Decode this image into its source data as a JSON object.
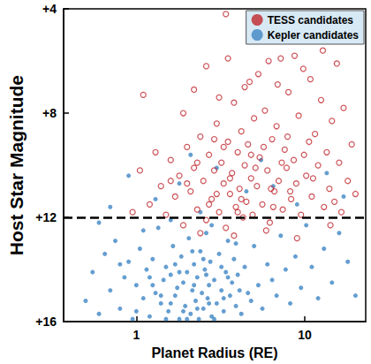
{
  "chart_data": {
    "type": "scatter",
    "x_label": "Planet Radius (RE)",
    "y_label": "Host Star Magnitude",
    "log": "x",
    "xlim": [
      0.37,
      23
    ],
    "xticks": [
      1,
      10
    ],
    "ylim": [
      4,
      16
    ],
    "yticks": [
      {
        "value": 4,
        "label": "+4"
      },
      {
        "value": 8,
        "label": "+8"
      },
      {
        "value": 12,
        "label": "+12"
      },
      {
        "value": 16,
        "label": "+16"
      }
    ],
    "y_inverted": true,
    "grid": false,
    "legend": "upper right",
    "reference_line": {
      "y": 12,
      "line_style": "dashed",
      "color": "#000000"
    },
    "series": [
      {
        "name": "Kepler candidates",
        "color": "#3f86c4",
        "marker": "circle",
        "values": [
          [
            0.5,
            15.2
          ],
          [
            0.55,
            14.1
          ],
          [
            0.6,
            15.7
          ],
          [
            0.65,
            13.4
          ],
          [
            0.7,
            14.8
          ],
          [
            0.75,
            12.9
          ],
          [
            0.8,
            15.5
          ],
          [
            0.85,
            14.3
          ],
          [
            0.9,
            13.7
          ],
          [
            0.95,
            15.9
          ],
          [
            1.0,
            14.6
          ],
          [
            1.05,
            13.2
          ],
          [
            1.1,
            15.1
          ],
          [
            1.15,
            14.0
          ],
          [
            1.2,
            15.8
          ],
          [
            1.25,
            13.6
          ],
          [
            1.3,
            14.9
          ],
          [
            1.35,
            12.4
          ],
          [
            1.4,
            15.3
          ],
          [
            1.45,
            14.4
          ],
          [
            1.5,
            13.9
          ],
          [
            1.55,
            15.6
          ],
          [
            1.6,
            14.2
          ],
          [
            1.65,
            13.1
          ],
          [
            1.7,
            15.0
          ],
          [
            1.75,
            14.7
          ],
          [
            1.8,
            15.9
          ],
          [
            1.85,
            13.5
          ],
          [
            1.9,
            14.5
          ],
          [
            1.95,
            15.4
          ],
          [
            2.0,
            14.1
          ],
          [
            2.05,
            12.8
          ],
          [
            2.1,
            15.7
          ],
          [
            2.15,
            14.8
          ],
          [
            2.2,
            13.8
          ],
          [
            2.25,
            15.2
          ],
          [
            2.3,
            14.3
          ],
          [
            2.35,
            15.9
          ],
          [
            2.4,
            13.3
          ],
          [
            2.45,
            14.9
          ],
          [
            2.5,
            15.5
          ],
          [
            2.55,
            14.0
          ],
          [
            2.6,
            12.6
          ],
          [
            2.65,
            15.1
          ],
          [
            2.7,
            14.6
          ],
          [
            2.75,
            13.7
          ],
          [
            2.8,
            15.8
          ],
          [
            2.9,
            14.4
          ],
          [
            3.0,
            15.3
          ],
          [
            3.1,
            13.4
          ],
          [
            3.2,
            14.8
          ],
          [
            3.3,
            15.6
          ],
          [
            3.4,
            14.1
          ],
          [
            3.5,
            12.9
          ],
          [
            3.6,
            15.0
          ],
          [
            3.7,
            14.5
          ],
          [
            3.8,
            13.6
          ],
          [
            3.9,
            15.4
          ],
          [
            4.0,
            14.2
          ],
          [
            4.2,
            15.7
          ],
          [
            4.4,
            13.9
          ],
          [
            4.6,
            14.9
          ],
          [
            4.8,
            15.2
          ],
          [
            5.0,
            13.1
          ],
          [
            5.3,
            14.6
          ],
          [
            5.6,
            15.5
          ],
          [
            6.0,
            13.8
          ],
          [
            6.4,
            14.4
          ],
          [
            6.8,
            15.0
          ],
          [
            7.2,
            12.7
          ],
          [
            7.7,
            14.0
          ],
          [
            8.2,
            15.3
          ],
          [
            8.8,
            13.5
          ],
          [
            9.5,
            14.7
          ],
          [
            10.2,
            12.3
          ],
          [
            11.0,
            13.9
          ],
          [
            12.0,
            15.1
          ],
          [
            13.0,
            13.2
          ],
          [
            14.5,
            14.5
          ],
          [
            16.0,
            12.6
          ],
          [
            18.0,
            13.7
          ],
          [
            20.0,
            15.0
          ],
          [
            1.3,
            11.3
          ],
          [
            1.8,
            10.7
          ],
          [
            2.4,
            11.8
          ],
          [
            3.0,
            10.1
          ],
          [
            0.7,
            11.6
          ],
          [
            0.9,
            10.4
          ],
          [
            4.5,
            11.0
          ],
          [
            6.5,
            10.8
          ],
          [
            9.0,
            11.5
          ],
          [
            13.5,
            10.3
          ],
          [
            17.0,
            11.2
          ],
          [
            2.1,
            9.6
          ],
          [
            5.5,
            9.8
          ],
          [
            0.6,
            12.2
          ],
          [
            1.1,
            12.5
          ],
          [
            1.6,
            12.1
          ],
          [
            2.8,
            12.3
          ],
          [
            1.2,
            14.3
          ],
          [
            1.4,
            15.0
          ],
          [
            1.7,
            13.8
          ],
          [
            1.9,
            15.6
          ],
          [
            2.2,
            14.6
          ],
          [
            2.5,
            13.6
          ],
          [
            2.7,
            15.3
          ],
          [
            3.2,
            13.9
          ],
          [
            3.5,
            14.3
          ],
          [
            2.0,
            15.9
          ],
          [
            1.5,
            15.9
          ],
          [
            2.3,
            15.5
          ],
          [
            2.9,
            15.9
          ],
          [
            1.0,
            15.6
          ],
          [
            1.8,
            14.1
          ],
          [
            2.6,
            14.2
          ],
          [
            3.3,
            15.1
          ],
          [
            0.8,
            13.8
          ],
          [
            1.25,
            14.6
          ],
          [
            1.6,
            15.3
          ],
          [
            2.15,
            13.3
          ],
          [
            3.9,
            13.0
          ],
          [
            4.1,
            14.8
          ]
        ]
      },
      {
        "name": "TESS candidates",
        "color": "#c0272d",
        "marker": "open_circle",
        "values": [
          [
            1.2,
            11.5
          ],
          [
            1.4,
            10.8
          ],
          [
            1.5,
            11.9
          ],
          [
            1.6,
            9.8
          ],
          [
            1.7,
            11.2
          ],
          [
            1.8,
            10.4
          ],
          [
            1.9,
            12.3
          ],
          [
            2.0,
            9.3
          ],
          [
            2.1,
            11.0
          ],
          [
            2.2,
            10.1
          ],
          [
            2.3,
            11.7
          ],
          [
            2.4,
            8.9
          ],
          [
            2.5,
            10.6
          ],
          [
            2.6,
            12.1
          ],
          [
            2.7,
            9.6
          ],
          [
            2.8,
            11.3
          ],
          [
            2.9,
            10.2
          ],
          [
            3.0,
            8.4
          ],
          [
            3.1,
            11.8
          ],
          [
            3.2,
            9.9
          ],
          [
            3.3,
            10.7
          ],
          [
            3.4,
            12.4
          ],
          [
            3.5,
            9.1
          ],
          [
            3.6,
            11.1
          ],
          [
            3.7,
            10.3
          ],
          [
            3.8,
            7.6
          ],
          [
            3.9,
            11.6
          ],
          [
            4.0,
            9.5
          ],
          [
            4.1,
            10.9
          ],
          [
            4.2,
            8.7
          ],
          [
            4.3,
            12.0
          ],
          [
            4.4,
            10.0
          ],
          [
            4.5,
            11.4
          ],
          [
            4.6,
            9.2
          ],
          [
            4.7,
            6.8
          ],
          [
            4.8,
            10.5
          ],
          [
            4.9,
            11.9
          ],
          [
            5.0,
            8.2
          ],
          [
            5.2,
            10.8
          ],
          [
            5.4,
            9.7
          ],
          [
            5.6,
            11.5
          ],
          [
            5.8,
            7.9
          ],
          [
            6.0,
            10.2
          ],
          [
            6.2,
            12.2
          ],
          [
            6.4,
            9.0
          ],
          [
            6.6,
            11.0
          ],
          [
            6.8,
            8.5
          ],
          [
            7.0,
            10.6
          ],
          [
            7.2,
            5.9
          ],
          [
            7.4,
            11.7
          ],
          [
            7.6,
            9.4
          ],
          [
            7.8,
            10.1
          ],
          [
            8.0,
            7.2
          ],
          [
            8.3,
            11.3
          ],
          [
            8.6,
            9.8
          ],
          [
            8.9,
            10.7
          ],
          [
            9.2,
            8.1
          ],
          [
            9.5,
            11.9
          ],
          [
            9.8,
            6.3
          ],
          [
            10.2,
            10.4
          ],
          [
            10.6,
            9.1
          ],
          [
            11.0,
            11.2
          ],
          [
            11.5,
            8.8
          ],
          [
            12.0,
            10.0
          ],
          [
            12.5,
            7.5
          ],
          [
            13.0,
            11.6
          ],
          [
            13.5,
            9.5
          ],
          [
            14.0,
            10.9
          ],
          [
            14.5,
            8.3
          ],
          [
            15.0,
            11.4
          ],
          [
            16.0,
            9.9
          ],
          [
            17.0,
            7.8
          ],
          [
            18.0,
            10.6
          ],
          [
            19.0,
            9.2
          ],
          [
            20.0,
            11.1
          ],
          [
            1.3,
            9.5
          ],
          [
            1.9,
            8.0
          ],
          [
            2.2,
            7.1
          ],
          [
            2.6,
            6.2
          ],
          [
            3.1,
            7.4
          ],
          [
            3.5,
            5.9
          ],
          [
            4.4,
            7.0
          ],
          [
            5.3,
            6.5
          ],
          [
            6.1,
            6.0
          ],
          [
            6.9,
            6.9
          ],
          [
            3.4,
            4.2
          ],
          [
            8.7,
            5.8
          ],
          [
            10.8,
            6.7
          ],
          [
            12.8,
            5.6
          ],
          [
            15.5,
            6.1
          ],
          [
            1.1,
            7.3
          ],
          [
            0.95,
            11.8
          ],
          [
            1.05,
            10.2
          ],
          [
            2.4,
            12.6
          ],
          [
            3.8,
            12.7
          ],
          [
            5.9,
            12.5
          ],
          [
            9.0,
            12.8
          ],
          [
            14.2,
            12.3
          ],
          [
            2.9,
            9.0
          ],
          [
            3.6,
            10.5
          ],
          [
            4.2,
            11.3
          ],
          [
            5.1,
            10.1
          ],
          [
            6.3,
            10.9
          ],
          [
            7.3,
            9.9
          ],
          [
            8.2,
            11.0
          ],
          [
            2.0,
            10.7
          ],
          [
            2.7,
            11.5
          ],
          [
            3.3,
            9.3
          ],
          [
            4.8,
            9.6
          ],
          [
            6.5,
            11.6
          ],
          [
            7.9,
            8.9
          ],
          [
            11.2,
            10.5
          ],
          [
            16.5,
            11.8
          ],
          [
            3.0,
            11.1
          ],
          [
            4.0,
            11.8
          ],
          [
            5.7,
            9.3
          ],
          [
            9.9,
            9.6
          ],
          [
            1.6,
            10.6
          ],
          [
            2.3,
            9.9
          ]
        ]
      }
    ]
  }
}
